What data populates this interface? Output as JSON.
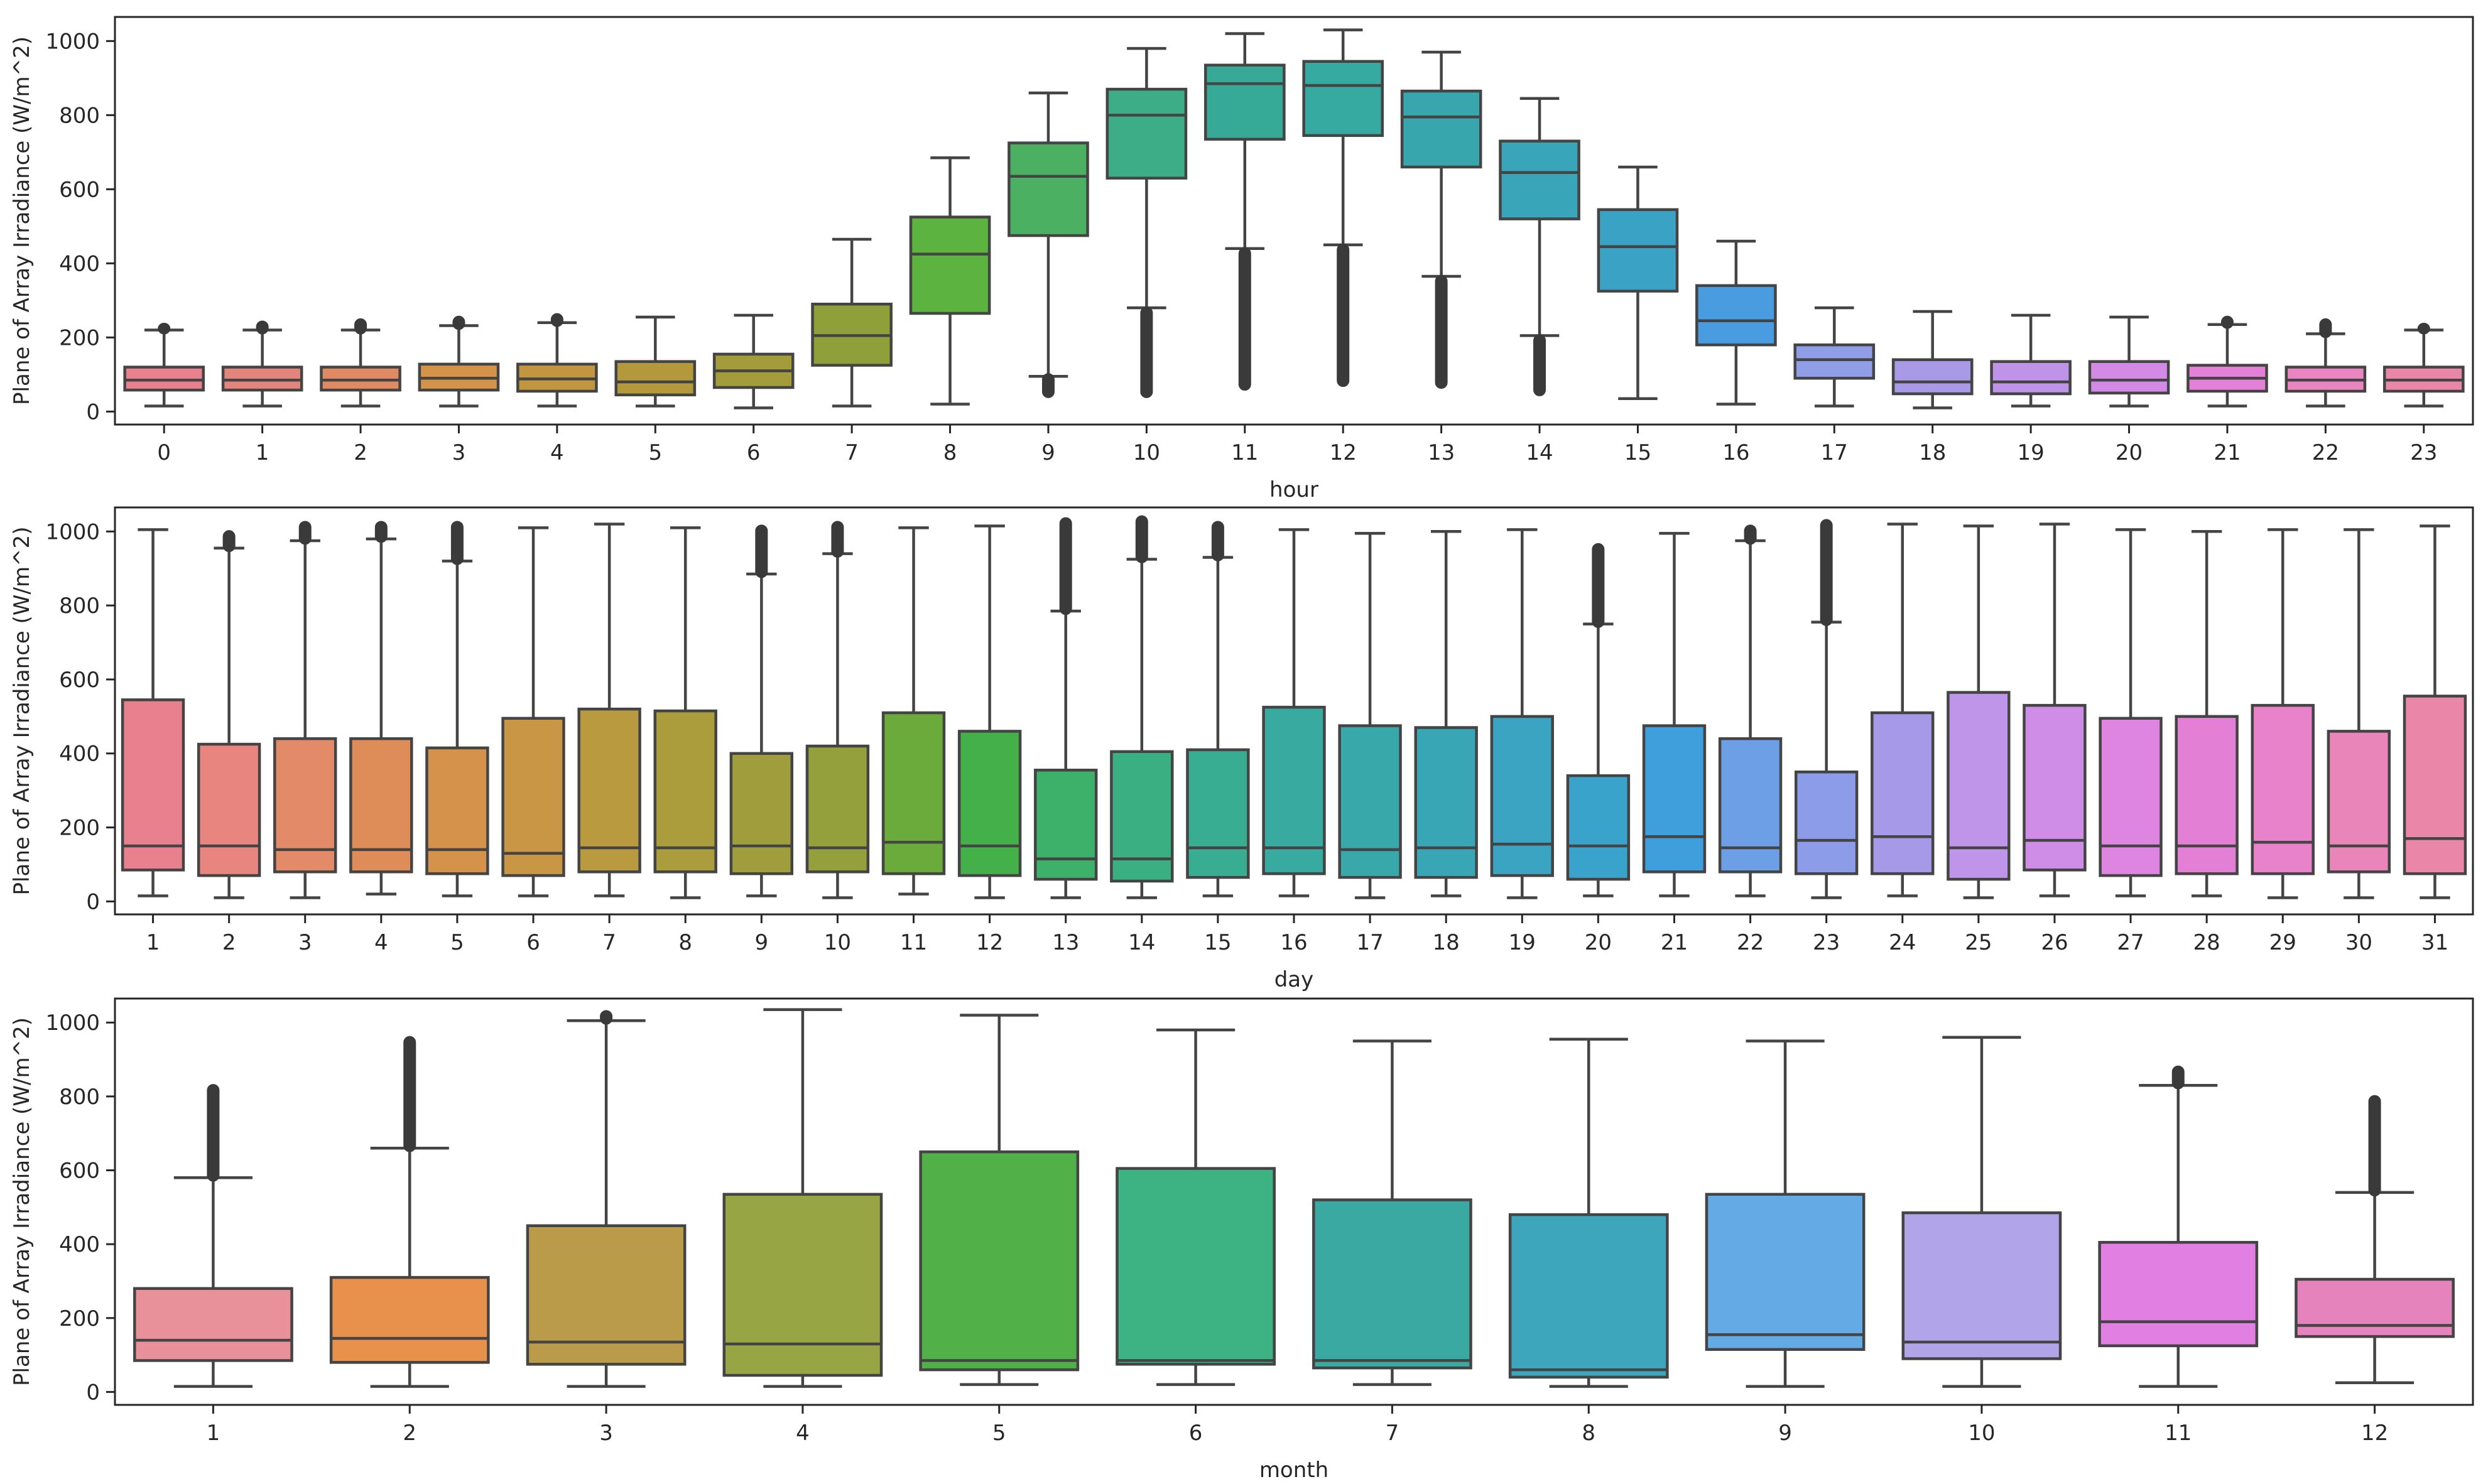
{
  "chart_data": [
    {
      "type": "boxplot",
      "title": "",
      "xlabel": "hour",
      "ylabel": "Plane of Array Irradiance (W/m^2)",
      "ylim": [
        -35,
        1065
      ],
      "yticks": [
        0,
        200,
        400,
        600,
        800,
        1000
      ],
      "categories": [
        "0",
        "1",
        "2",
        "3",
        "4",
        "5",
        "6",
        "7",
        "8",
        "9",
        "10",
        "11",
        "12",
        "13",
        "14",
        "15",
        "16",
        "17",
        "18",
        "19",
        "20",
        "21",
        "22",
        "23"
      ],
      "colors": [
        "#e8808d",
        "#e4857d",
        "#e08a63",
        "#d49349",
        "#c29640",
        "#b3993c",
        "#a39c3a",
        "#8fa03a",
        "#5db33f",
        "#4bb062",
        "#3cad86",
        "#37aa97",
        "#36a9a1",
        "#37a7ad",
        "#39a5b9",
        "#3aa3c5",
        "#4a9ce0",
        "#8f9ee6",
        "#a99ae8",
        "#be93e8",
        "#d38ae6",
        "#e480d7",
        "#e985c0",
        "#ea87a9"
      ],
      "boxes": [
        {
          "whislo": 15,
          "q1": 58,
          "med": 85,
          "q3": 120,
          "whishi": 220,
          "fliers": [
            222,
            226
          ]
        },
        {
          "whislo": 15,
          "q1": 58,
          "med": 85,
          "q3": 120,
          "whishi": 220,
          "fliers": [
            222,
            232
          ]
        },
        {
          "whislo": 15,
          "q1": 58,
          "med": 85,
          "q3": 120,
          "whishi": 220,
          "fliers": [
            222,
            238
          ]
        },
        {
          "whislo": 15,
          "q1": 58,
          "med": 90,
          "q3": 128,
          "whishi": 232,
          "fliers": [
            234,
            245
          ]
        },
        {
          "whislo": 15,
          "q1": 55,
          "med": 88,
          "q3": 128,
          "whishi": 240,
          "fliers": [
            242,
            252
          ]
        },
        {
          "whislo": 15,
          "q1": 45,
          "med": 80,
          "q3": 135,
          "whishi": 255,
          "fliers": []
        },
        {
          "whislo": 10,
          "q1": 65,
          "med": 110,
          "q3": 155,
          "whishi": 260,
          "fliers": []
        },
        {
          "whislo": 15,
          "q1": 125,
          "med": 205,
          "q3": 290,
          "whishi": 465,
          "fliers": []
        },
        {
          "whislo": 20,
          "q1": 265,
          "med": 425,
          "q3": 525,
          "whishi": 685,
          "fliers": []
        },
        {
          "whislo": 95,
          "q1": 475,
          "med": 635,
          "q3": 725,
          "whishi": 860,
          "fliers": [
            50,
            90
          ]
        },
        {
          "whislo": 280,
          "q1": 630,
          "med": 800,
          "q3": 870,
          "whishi": 980,
          "fliers": [
            50,
            270
          ]
        },
        {
          "whislo": 440,
          "q1": 735,
          "med": 885,
          "q3": 935,
          "whishi": 1020,
          "fliers": [
            70,
            430
          ]
        },
        {
          "whislo": 450,
          "q1": 745,
          "med": 880,
          "q3": 945,
          "whishi": 1030,
          "fliers": [
            80,
            440
          ]
        },
        {
          "whislo": 365,
          "q1": 660,
          "med": 795,
          "q3": 865,
          "whishi": 970,
          "fliers": [
            75,
            355
          ]
        },
        {
          "whislo": 205,
          "q1": 520,
          "med": 645,
          "q3": 730,
          "whishi": 845,
          "fliers": [
            55,
            195
          ]
        },
        {
          "whislo": 35,
          "q1": 325,
          "med": 445,
          "q3": 545,
          "whishi": 660,
          "fliers": []
        },
        {
          "whislo": 20,
          "q1": 180,
          "med": 245,
          "q3": 340,
          "whishi": 460,
          "fliers": []
        },
        {
          "whislo": 15,
          "q1": 90,
          "med": 140,
          "q3": 180,
          "whishi": 280,
          "fliers": []
        },
        {
          "whislo": 10,
          "q1": 48,
          "med": 80,
          "q3": 140,
          "whishi": 270,
          "fliers": []
        },
        {
          "whislo": 15,
          "q1": 48,
          "med": 80,
          "q3": 135,
          "whishi": 260,
          "fliers": []
        },
        {
          "whislo": 15,
          "q1": 50,
          "med": 85,
          "q3": 135,
          "whishi": 255,
          "fliers": []
        },
        {
          "whislo": 15,
          "q1": 55,
          "med": 90,
          "q3": 125,
          "whishi": 235,
          "fliers": [
            237,
            245
          ]
        },
        {
          "whislo": 15,
          "q1": 55,
          "med": 85,
          "q3": 120,
          "whishi": 210,
          "fliers": [
            212,
            238
          ]
        },
        {
          "whislo": 15,
          "q1": 55,
          "med": 85,
          "q3": 120,
          "whishi": 220,
          "fliers": [
            222,
            226
          ]
        }
      ]
    },
    {
      "type": "boxplot",
      "title": "",
      "xlabel": "day",
      "ylabel": "Plane of Array Irradiance (W/m^2)",
      "ylim": [
        -35,
        1065
      ],
      "yticks": [
        0,
        200,
        400,
        600,
        800,
        1000
      ],
      "categories": [
        "1",
        "2",
        "3",
        "4",
        "5",
        "6",
        "7",
        "8",
        "9",
        "10",
        "11",
        "12",
        "13",
        "14",
        "15",
        "16",
        "17",
        "18",
        "19",
        "20",
        "21",
        "22",
        "23",
        "24",
        "25",
        "26",
        "27",
        "28",
        "29",
        "30",
        "31"
      ],
      "colors": [
        "#e8808d",
        "#e8857e",
        "#e38a68",
        "#de8c58",
        "#d4924a",
        "#c89644",
        "#b99a3e",
        "#ab9c3c",
        "#a09e3c",
        "#94a03c",
        "#6aab3c",
        "#44b04a",
        "#3db06a",
        "#3aaf82",
        "#39ad92",
        "#38aa9f",
        "#38a8ab",
        "#39a6b6",
        "#3ba4c2",
        "#3aa3cc",
        "#3f9fdc",
        "#6c9fe6",
        "#8c9ce8",
        "#a69ae8",
        "#be95e9",
        "#cf8de7",
        "#de85e2",
        "#e47fd6",
        "#e882ca",
        "#e985b9",
        "#ea87a8"
      ],
      "boxes": [
        {
          "whislo": 15,
          "q1": 85,
          "med": 150,
          "q3": 545,
          "whishi": 1005,
          "fliers": []
        },
        {
          "whislo": 10,
          "q1": 70,
          "med": 150,
          "q3": 425,
          "whishi": 955,
          "fliers": [
            958,
            990
          ]
        },
        {
          "whislo": 10,
          "q1": 80,
          "med": 140,
          "q3": 440,
          "whishi": 975,
          "fliers": [
            978,
            1015
          ]
        },
        {
          "whislo": 20,
          "q1": 80,
          "med": 140,
          "q3": 440,
          "whishi": 980,
          "fliers": [
            983,
            1015
          ]
        },
        {
          "whislo": 15,
          "q1": 75,
          "med": 140,
          "q3": 415,
          "whishi": 920,
          "fliers": [
            923,
            1015
          ]
        },
        {
          "whislo": 15,
          "q1": 70,
          "med": 130,
          "q3": 495,
          "whishi": 1010,
          "fliers": []
        },
        {
          "whislo": 15,
          "q1": 80,
          "med": 145,
          "q3": 520,
          "whishi": 1020,
          "fliers": []
        },
        {
          "whislo": 10,
          "q1": 80,
          "med": 145,
          "q3": 515,
          "whishi": 1010,
          "fliers": []
        },
        {
          "whislo": 15,
          "q1": 75,
          "med": 150,
          "q3": 400,
          "whishi": 885,
          "fliers": [
            888,
            1005
          ]
        },
        {
          "whislo": 10,
          "q1": 80,
          "med": 145,
          "q3": 420,
          "whishi": 940,
          "fliers": [
            943,
            1015
          ]
        },
        {
          "whislo": 20,
          "q1": 75,
          "med": 160,
          "q3": 510,
          "whishi": 1010,
          "fliers": []
        },
        {
          "whislo": 10,
          "q1": 70,
          "med": 150,
          "q3": 460,
          "whishi": 1015,
          "fliers": []
        },
        {
          "whislo": 10,
          "q1": 60,
          "med": 115,
          "q3": 355,
          "whishi": 785,
          "fliers": [
            788,
            1025
          ]
        },
        {
          "whislo": 10,
          "q1": 55,
          "med": 115,
          "q3": 405,
          "whishi": 925,
          "fliers": [
            928,
            1030
          ]
        },
        {
          "whislo": 15,
          "q1": 65,
          "med": 145,
          "q3": 410,
          "whishi": 930,
          "fliers": [
            933,
            1015
          ]
        },
        {
          "whislo": 15,
          "q1": 75,
          "med": 145,
          "q3": 525,
          "whishi": 1005,
          "fliers": []
        },
        {
          "whislo": 10,
          "q1": 65,
          "med": 140,
          "q3": 475,
          "whishi": 995,
          "fliers": []
        },
        {
          "whislo": 15,
          "q1": 65,
          "med": 145,
          "q3": 470,
          "whishi": 1000,
          "fliers": []
        },
        {
          "whislo": 10,
          "q1": 70,
          "med": 155,
          "q3": 500,
          "whishi": 1005,
          "fliers": []
        },
        {
          "whislo": 15,
          "q1": 60,
          "med": 150,
          "q3": 340,
          "whishi": 750,
          "fliers": [
            753,
            955
          ]
        },
        {
          "whislo": 15,
          "q1": 80,
          "med": 175,
          "q3": 475,
          "whishi": 995,
          "fliers": []
        },
        {
          "whislo": 15,
          "q1": 80,
          "med": 145,
          "q3": 440,
          "whishi": 975,
          "fliers": [
            978,
            1005
          ]
        },
        {
          "whislo": 10,
          "q1": 75,
          "med": 165,
          "q3": 350,
          "whishi": 755,
          "fliers": [
            758,
            1020
          ]
        },
        {
          "whislo": 15,
          "q1": 75,
          "med": 175,
          "q3": 510,
          "whishi": 1020,
          "fliers": []
        },
        {
          "whislo": 10,
          "q1": 60,
          "med": 145,
          "q3": 565,
          "whishi": 1015,
          "fliers": []
        },
        {
          "whislo": 15,
          "q1": 85,
          "med": 165,
          "q3": 530,
          "whishi": 1020,
          "fliers": []
        },
        {
          "whislo": 15,
          "q1": 70,
          "med": 150,
          "q3": 495,
          "whishi": 1005,
          "fliers": []
        },
        {
          "whislo": 15,
          "q1": 75,
          "med": 150,
          "q3": 500,
          "whishi": 1000,
          "fliers": []
        },
        {
          "whislo": 10,
          "q1": 75,
          "med": 160,
          "q3": 530,
          "whishi": 1005,
          "fliers": []
        },
        {
          "whislo": 10,
          "q1": 80,
          "med": 150,
          "q3": 460,
          "whishi": 1005,
          "fliers": []
        },
        {
          "whislo": 10,
          "q1": 75,
          "med": 170,
          "q3": 555,
          "whishi": 1015,
          "fliers": []
        }
      ]
    },
    {
      "type": "boxplot",
      "title": "",
      "xlabel": "month",
      "ylabel": "Plane of Array Irradiance (W/m^2)",
      "ylim": [
        -35,
        1065
      ],
      "yticks": [
        0,
        200,
        400,
        600,
        800,
        1000
      ],
      "categories": [
        "1",
        "2",
        "3",
        "4",
        "5",
        "6",
        "7",
        "8",
        "9",
        "10",
        "11",
        "12"
      ],
      "colors": [
        "#e8919a",
        "#e8914d",
        "#ba9b49",
        "#97a545",
        "#52b049",
        "#3db384",
        "#39a9a2",
        "#3ea6bc",
        "#64abe6",
        "#b1a4e8",
        "#e27fe3",
        "#e583bd"
      ],
      "boxes": [
        {
          "whislo": 15,
          "q1": 85,
          "med": 140,
          "q3": 280,
          "whishi": 580,
          "fliers": [
            583,
            820
          ]
        },
        {
          "whislo": 15,
          "q1": 80,
          "med": 145,
          "q3": 310,
          "whishi": 660,
          "fliers": [
            663,
            950
          ]
        },
        {
          "whislo": 15,
          "q1": 75,
          "med": 135,
          "q3": 450,
          "whishi": 1005,
          "fliers": [
            1008,
            1020
          ]
        },
        {
          "whislo": 15,
          "q1": 45,
          "med": 130,
          "q3": 535,
          "whishi": 1035,
          "fliers": []
        },
        {
          "whislo": 20,
          "q1": 60,
          "med": 85,
          "q3": 650,
          "whishi": 1020,
          "fliers": []
        },
        {
          "whislo": 20,
          "q1": 75,
          "med": 85,
          "q3": 605,
          "whishi": 980,
          "fliers": []
        },
        {
          "whislo": 20,
          "q1": 65,
          "med": 85,
          "q3": 520,
          "whishi": 950,
          "fliers": []
        },
        {
          "whislo": 15,
          "q1": 40,
          "med": 60,
          "q3": 480,
          "whishi": 955,
          "fliers": []
        },
        {
          "whislo": 15,
          "q1": 115,
          "med": 155,
          "q3": 535,
          "whishi": 950,
          "fliers": []
        },
        {
          "whislo": 15,
          "q1": 90,
          "med": 135,
          "q3": 485,
          "whishi": 960,
          "fliers": []
        },
        {
          "whislo": 15,
          "q1": 125,
          "med": 190,
          "q3": 405,
          "whishi": 830,
          "fliers": [
            833,
            870
          ]
        },
        {
          "whislo": 25,
          "q1": 150,
          "med": 180,
          "q3": 305,
          "whishi": 540,
          "fliers": [
            543,
            790
          ]
        }
      ]
    }
  ]
}
